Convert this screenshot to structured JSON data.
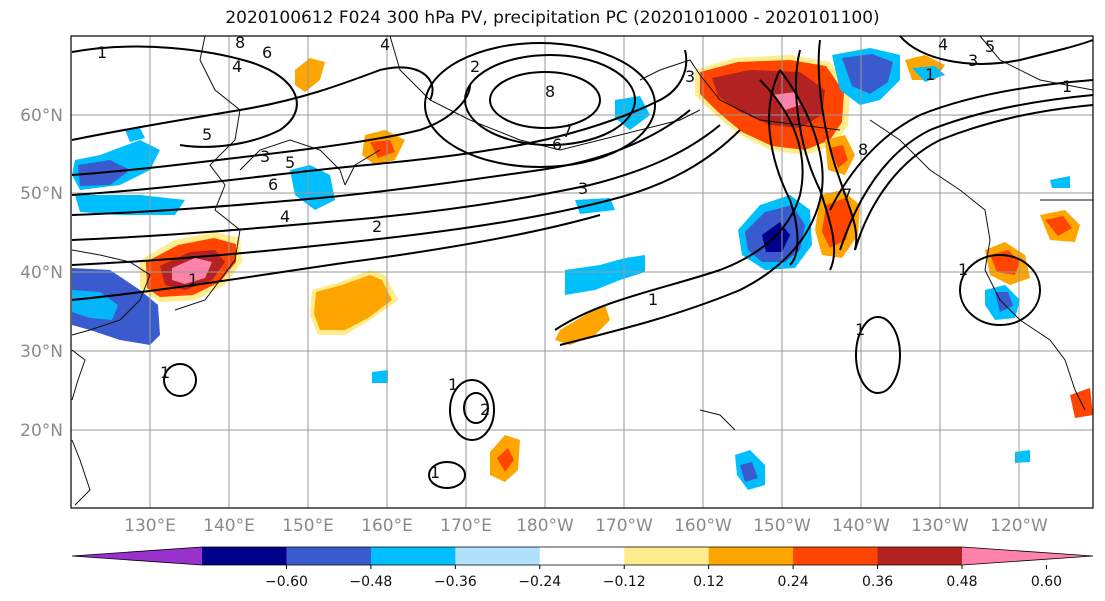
{
  "title": "2020100612 F024 300 hPa PV, precipitation PC (2020101000 - 2020101100)",
  "lat_labels": [
    "60°N",
    "50°N",
    "40°N",
    "30°N",
    "20°N"
  ],
  "lon_labels": [
    "130°E",
    "140°E",
    "150°E",
    "160°E",
    "170°E",
    "180°W",
    "170°W",
    "160°W",
    "150°W",
    "140°W",
    "130°W",
    "120°W"
  ],
  "colorbar": {
    "colors": [
      "#9932cc",
      "#00008b",
      "#3a5bcd",
      "#00bfff",
      "#b0e2ff",
      "#ffffff",
      "#ffec8b",
      "#ffa500",
      "#ff4500",
      "#b22222",
      "#ff82ab"
    ],
    "tick_labels": [
      "−0.60",
      "−0.48",
      "−0.36",
      "−0.24",
      "−0.12",
      "0.12",
      "0.24",
      "0.36",
      "0.48",
      "0.60"
    ]
  },
  "contour_labels": [
    "1",
    "8",
    "6",
    "4",
    "4",
    "5",
    "3",
    "6",
    "5",
    "4",
    "2",
    "3",
    "8",
    "7",
    "6",
    "3",
    "2",
    "1",
    "1",
    "1",
    "1",
    "8",
    "7",
    "4",
    "5",
    "3",
    "1",
    "1",
    "1",
    "1",
    "2",
    "1"
  ]
}
